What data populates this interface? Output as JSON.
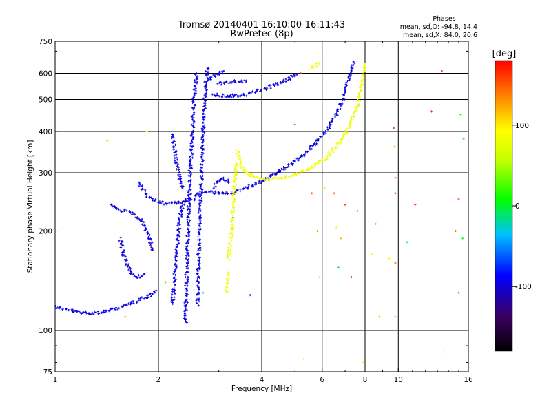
{
  "chart_data": {
    "type": "scatter",
    "title": "Tromsø 20140401 16:10:00-16:11:43",
    "subtitle": "RwPretec (8p)",
    "xlabel": "Frequency [MHz]",
    "ylabel": "Stationary phase Virtual Height [km]",
    "x_scale": "log",
    "y_scale": "log",
    "xlim": [
      1,
      16
    ],
    "ylim": [
      75,
      750
    ],
    "x_ticks": [
      1,
      2,
      4,
      6,
      8,
      10,
      16
    ],
    "x_tick_labels": [
      "1",
      "2",
      "4",
      "6",
      "8",
      "10",
      "16"
    ],
    "x_grid": [
      2,
      4,
      6,
      8,
      10
    ],
    "y_ticks": [
      75,
      100,
      200,
      300,
      400,
      500,
      600,
      750
    ],
    "y_tick_labels": [
      "75",
      "100",
      "200",
      "300",
      "400",
      "500",
      "600",
      "750"
    ],
    "y_grid": [
      100,
      200,
      300,
      400,
      500,
      600
    ],
    "grid": true,
    "stats": {
      "heading": "Phases",
      "line1": "mean, sd,O: -94.8, 14.4",
      "line2": "mean, sd,X:  84.0, 20.6"
    },
    "colorbar": {
      "label": "[deg]",
      "range": [
        -180,
        180
      ],
      "ticks": [
        -100,
        0,
        100
      ],
      "tick_labels": [
        "-100",
        "0",
        "100"
      ],
      "colormap": "rainbow"
    },
    "series": [
      {
        "phase_deg": -95,
        "traces": [
          {
            "points": [
              [
                1.0,
                118
              ],
              [
                1.05,
                116
              ],
              [
                1.1,
                115
              ],
              [
                1.2,
                113
              ],
              [
                1.3,
                113
              ],
              [
                1.4,
                114
              ],
              [
                1.5,
                116
              ],
              [
                1.6,
                119
              ],
              [
                1.7,
                122
              ],
              [
                1.8,
                125
              ],
              [
                1.9,
                128
              ],
              [
                1.97,
                132
              ]
            ]
          },
          {
            "points": [
              [
                1.45,
                240
              ],
              [
                1.55,
                230
              ],
              [
                1.62,
                230
              ],
              [
                1.7,
                225
              ],
              [
                1.78,
                215
              ],
              [
                1.85,
                200
              ],
              [
                1.9,
                185
              ],
              [
                1.92,
                175
              ]
            ]
          },
          {
            "points": [
              [
                1.55,
                190
              ],
              [
                1.58,
                170
              ],
              [
                1.62,
                158
              ],
              [
                1.68,
                148
              ],
              [
                1.75,
                145
              ],
              [
                1.82,
                148
              ]
            ]
          },
          {
            "points": [
              [
                1.75,
                280
              ],
              [
                1.82,
                262
              ],
              [
                1.9,
                250
              ],
              [
                2.0,
                245
              ],
              [
                2.1,
                242
              ],
              [
                2.2,
                243
              ],
              [
                2.3,
                244
              ],
              [
                2.45,
                248
              ],
              [
                2.55,
                250
              ]
            ]
          },
          {
            "points": [
              [
                2.55,
                255
              ],
              [
                2.7,
                262
              ],
              [
                2.9,
                262
              ],
              [
                3.1,
                260
              ],
              [
                3.3,
                262
              ],
              [
                3.5,
                268
              ],
              [
                3.8,
                275
              ],
              [
                4.0,
                283
              ],
              [
                4.3,
                295
              ],
              [
                4.7,
                312
              ],
              [
                5.2,
                335
              ],
              [
                5.7,
                365
              ],
              [
                6.2,
                405
              ],
              [
                6.6,
                450
              ],
              [
                6.9,
                500
              ],
              [
                7.1,
                560
              ],
              [
                7.3,
                620
              ],
              [
                7.4,
                650
              ]
            ]
          },
          {
            "points": [
              [
                2.9,
                520
              ],
              [
                3.0,
                514
              ],
              [
                3.2,
                512
              ],
              [
                3.5,
                514
              ],
              [
                3.8,
                525
              ],
              [
                4.1,
                540
              ],
              [
                4.5,
                560
              ],
              [
                4.8,
                580
              ],
              [
                5.1,
                600
              ]
            ]
          },
          {
            "points": [
              [
                3.0,
                555
              ],
              [
                3.2,
                565
              ],
              [
                3.4,
                568
              ],
              [
                3.6,
                565
              ]
            ]
          },
          {
            "points": [
              [
                2.4,
                105
              ],
              [
                2.42,
                150
              ],
              [
                2.45,
                220
              ],
              [
                2.47,
                280
              ],
              [
                2.5,
                360
              ],
              [
                2.52,
                440
              ],
              [
                2.55,
                520
              ],
              [
                2.58,
                600
              ]
            ]
          },
          {
            "points": [
              [
                2.6,
                120
              ],
              [
                2.62,
                170
              ],
              [
                2.65,
                250
              ],
              [
                2.68,
                330
              ],
              [
                2.7,
                400
              ],
              [
                2.72,
                470
              ],
              [
                2.75,
                560
              ],
              [
                2.78,
                620
              ]
            ]
          },
          {
            "points": [
              [
                2.2,
                120
              ],
              [
                2.25,
                160
              ],
              [
                2.3,
                210
              ],
              [
                2.35,
                240
              ],
              [
                2.4,
                250
              ]
            ]
          },
          {
            "points": [
              [
                2.2,
                390
              ],
              [
                2.25,
                330
              ],
              [
                2.3,
                290
              ],
              [
                2.35,
                270
              ]
            ]
          },
          {
            "points": [
              [
                2.9,
                270
              ],
              [
                3.0,
                285
              ],
              [
                3.1,
                290
              ],
              [
                3.2,
                280
              ]
            ]
          },
          {
            "points": [
              [
                2.8,
                570
              ],
              [
                2.9,
                590
              ],
              [
                3.0,
                600
              ],
              [
                3.1,
                610
              ]
            ]
          }
        ]
      },
      {
        "phase_deg": 84,
        "traces": [
          {
            "points": [
              [
                3.4,
                350
              ],
              [
                3.45,
                330
              ],
              [
                3.5,
                315
              ],
              [
                3.6,
                300
              ],
              [
                3.75,
                292
              ],
              [
                3.9,
                287
              ],
              [
                4.2,
                286
              ],
              [
                4.6,
                290
              ],
              [
                5.0,
                296
              ],
              [
                5.4,
                305
              ],
              [
                5.8,
                318
              ],
              [
                6.2,
                335
              ],
              [
                6.6,
                360
              ],
              [
                7.0,
                395
              ],
              [
                7.3,
                430
              ],
              [
                7.6,
                480
              ],
              [
                7.8,
                540
              ],
              [
                7.95,
                610
              ],
              [
                8.0,
                640
              ]
            ]
          },
          {
            "points": [
              [
                3.2,
                165
              ],
              [
                3.22,
                175
              ],
              [
                3.25,
                190
              ],
              [
                3.28,
                205
              ],
              [
                3.3,
                225
              ],
              [
                3.32,
                255
              ],
              [
                3.35,
                290
              ],
              [
                3.38,
                320
              ]
            ]
          },
          {
            "points": [
              [
                3.15,
                130
              ],
              [
                3.18,
                140
              ],
              [
                3.2,
                150
              ]
            ]
          },
          {
            "points": [
              [
                5.5,
                620
              ],
              [
                5.7,
                630
              ],
              [
                5.9,
                640
              ]
            ]
          }
        ]
      }
    ],
    "scattered_points": [
      {
        "x": 1.42,
        "y": 375,
        "phase_deg": 110
      },
      {
        "x": 1.6,
        "y": 110,
        "phase_deg": 150
      },
      {
        "x": 1.85,
        "y": 400,
        "phase_deg": 90
      },
      {
        "x": 1.9,
        "y": 180,
        "phase_deg": 160
      },
      {
        "x": 2.1,
        "y": 140,
        "phase_deg": 30
      },
      {
        "x": 2.7,
        "y": 130,
        "phase_deg": -30
      },
      {
        "x": 3.3,
        "y": 220,
        "phase_deg": 20
      },
      {
        "x": 3.7,
        "y": 128,
        "phase_deg": -95
      },
      {
        "x": 5.0,
        "y": 420,
        "phase_deg": 160
      },
      {
        "x": 5.2,
        "y": 600,
        "phase_deg": 170
      },
      {
        "x": 5.3,
        "y": 82,
        "phase_deg": 100
      },
      {
        "x": 5.6,
        "y": 260,
        "phase_deg": 150
      },
      {
        "x": 5.8,
        "y": 200,
        "phase_deg": 130
      },
      {
        "x": 5.9,
        "y": 145,
        "phase_deg": 30
      },
      {
        "x": 6.1,
        "y": 270,
        "phase_deg": 100
      },
      {
        "x": 6.5,
        "y": 260,
        "phase_deg": 150
      },
      {
        "x": 6.6,
        "y": 205,
        "phase_deg": 80
      },
      {
        "x": 6.7,
        "y": 155,
        "phase_deg": -30
      },
      {
        "x": 6.8,
        "y": 190,
        "phase_deg": 120
      },
      {
        "x": 7.0,
        "y": 240,
        "phase_deg": 160
      },
      {
        "x": 7.3,
        "y": 145,
        "phase_deg": 180
      },
      {
        "x": 7.6,
        "y": 230,
        "phase_deg": 170
      },
      {
        "x": 7.9,
        "y": 80,
        "phase_deg": 80
      },
      {
        "x": 8.4,
        "y": 170,
        "phase_deg": 90
      },
      {
        "x": 8.6,
        "y": 210,
        "phase_deg": 120
      },
      {
        "x": 8.8,
        "y": 110,
        "phase_deg": 110
      },
      {
        "x": 9.4,
        "y": 165,
        "phase_deg": 90
      },
      {
        "x": 9.7,
        "y": 410,
        "phase_deg": 170
      },
      {
        "x": 9.75,
        "y": 360,
        "phase_deg": 120
      },
      {
        "x": 9.8,
        "y": 290,
        "phase_deg": 150
      },
      {
        "x": 9.8,
        "y": 260,
        "phase_deg": 170
      },
      {
        "x": 9.8,
        "y": 160,
        "phase_deg": 150
      },
      {
        "x": 9.8,
        "y": 110,
        "phase_deg": 120
      },
      {
        "x": 10.6,
        "y": 185,
        "phase_deg": -30
      },
      {
        "x": 11.2,
        "y": 240,
        "phase_deg": 160
      },
      {
        "x": 12.5,
        "y": 460,
        "phase_deg": 170
      },
      {
        "x": 13.4,
        "y": 610,
        "phase_deg": 160
      },
      {
        "x": 13.6,
        "y": 86,
        "phase_deg": 110
      },
      {
        "x": 14.7,
        "y": 200,
        "phase_deg": 150
      },
      {
        "x": 15.0,
        "y": 250,
        "phase_deg": 160
      },
      {
        "x": 15.0,
        "y": 130,
        "phase_deg": 170
      },
      {
        "x": 15.2,
        "y": 450,
        "phase_deg": 20
      },
      {
        "x": 15.4,
        "y": 190,
        "phase_deg": 10
      },
      {
        "x": 15.5,
        "y": 380,
        "phase_deg": -20
      }
    ]
  }
}
